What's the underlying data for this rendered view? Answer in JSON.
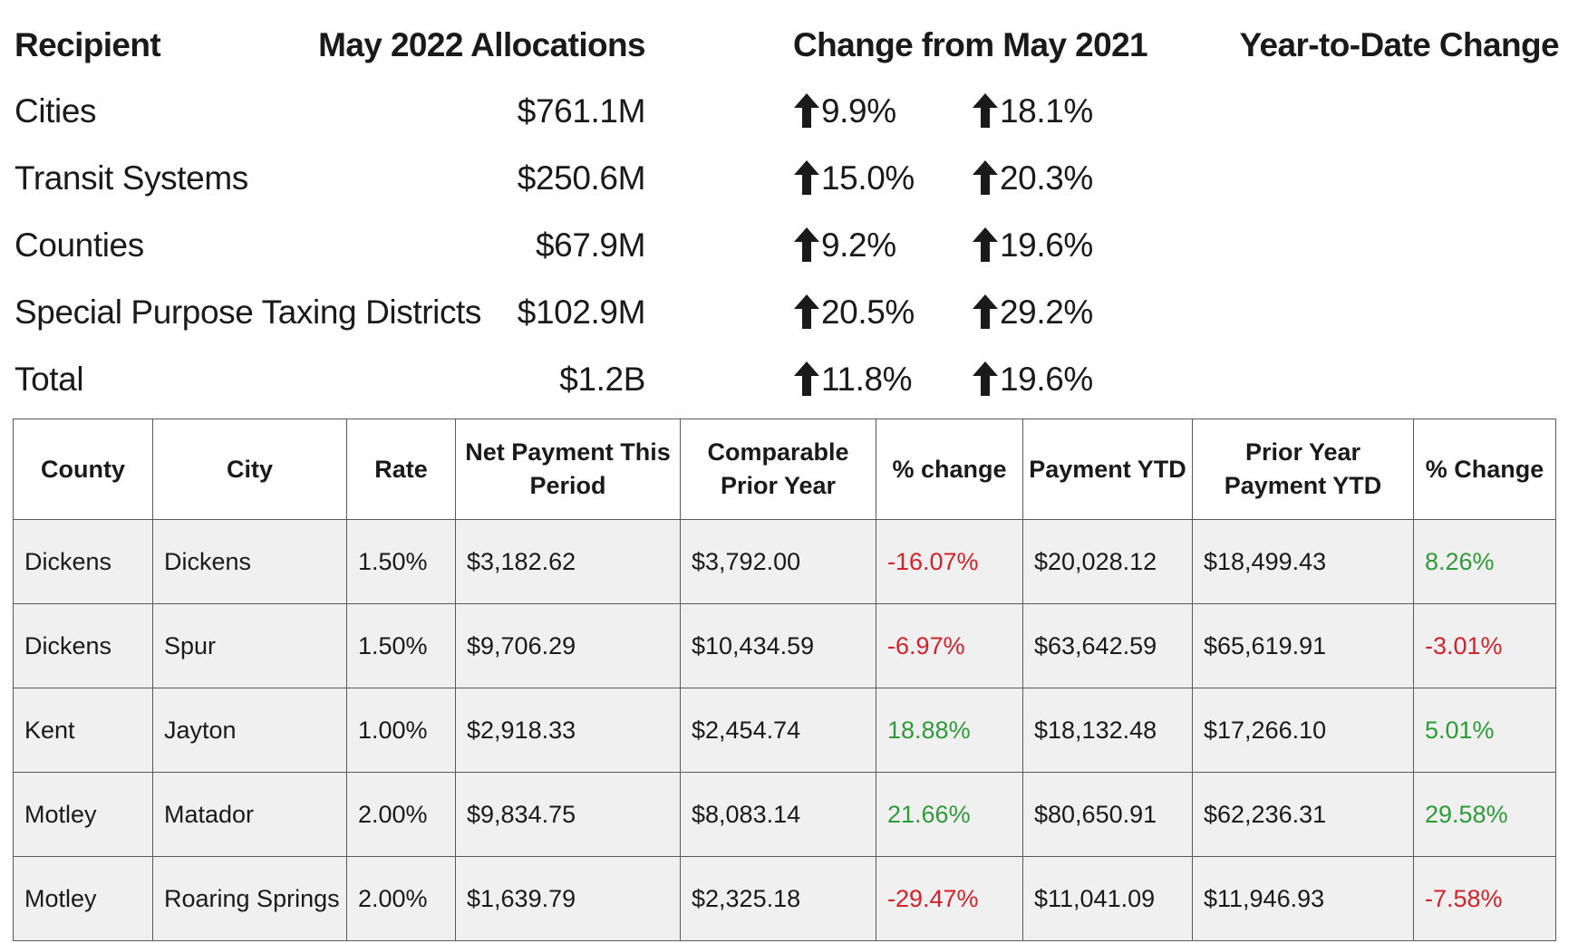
{
  "summary": {
    "headers": {
      "recipient": "Recipient",
      "allocations": "May 2022 Allocations",
      "change": "Change from May 2021",
      "ytd": "Year-to-Date Change"
    },
    "rows": [
      {
        "recipient": "Cities",
        "allocation": "$761.1M",
        "change": "9.9%",
        "ytd": "18.1%"
      },
      {
        "recipient": "Transit Systems",
        "allocation": "$250.6M",
        "change": "15.0%",
        "ytd": "20.3%"
      },
      {
        "recipient": "Counties",
        "allocation": "$67.9M",
        "change": "9.2%",
        "ytd": "19.6%"
      },
      {
        "recipient": "Special Purpose Taxing Districts",
        "allocation": "$102.9M",
        "change": "20.5%",
        "ytd": "29.2%"
      },
      {
        "recipient": "Total",
        "allocation": "$1.2B",
        "change": "11.8%",
        "ytd": "19.6%"
      }
    ],
    "arrow_icon": "arrow-up-icon"
  },
  "table": {
    "headers": {
      "county": "County",
      "city": "City",
      "rate": "Rate",
      "net_payment": "Net Payment This Period",
      "comparable": "Comparable Prior Year",
      "pct_change": "% change",
      "payment_ytd": "Payment YTD",
      "prior_ytd": "Prior Year Payment YTD",
      "pct_change_ytd": "% Change"
    },
    "rows": [
      {
        "county": "Dickens",
        "city": "Dickens",
        "rate": "1.50%",
        "net_payment": "$3,182.62",
        "comparable": "$3,792.00",
        "pct_change": "-16.07%",
        "payment_ytd": "$20,028.12",
        "prior_ytd": "$18,499.43",
        "pct_change_ytd": "8.26%"
      },
      {
        "county": "Dickens",
        "city": "Spur",
        "rate": "1.50%",
        "net_payment": "$9,706.29",
        "comparable": "$10,434.59",
        "pct_change": "-6.97%",
        "payment_ytd": "$63,642.59",
        "prior_ytd": "$65,619.91",
        "pct_change_ytd": "-3.01%"
      },
      {
        "county": "Kent",
        "city": "Jayton",
        "rate": "1.00%",
        "net_payment": "$2,918.33",
        "comparable": "$2,454.74",
        "pct_change": "18.88%",
        "payment_ytd": "$18,132.48",
        "prior_ytd": "$17,266.10",
        "pct_change_ytd": "5.01%"
      },
      {
        "county": "Motley",
        "city": "Matador",
        "rate": "2.00%",
        "net_payment": "$9,834.75",
        "comparable": "$8,083.14",
        "pct_change": "21.66%",
        "payment_ytd": "$80,650.91",
        "prior_ytd": "$62,236.31",
        "pct_change_ytd": "29.58%"
      },
      {
        "county": "Motley",
        "city": "Roaring Springs",
        "rate": "2.00%",
        "net_payment": "$1,639.79",
        "comparable": "$2,325.18",
        "pct_change": "-29.47%",
        "payment_ytd": "$11,041.09",
        "prior_ytd": "$11,946.93",
        "pct_change_ytd": "-7.58%"
      }
    ]
  },
  "colors": {
    "negative": "#d4222b",
    "positive": "#2f9a3a",
    "row_background": "#f1f0f0",
    "border": "#5a5a5a"
  }
}
